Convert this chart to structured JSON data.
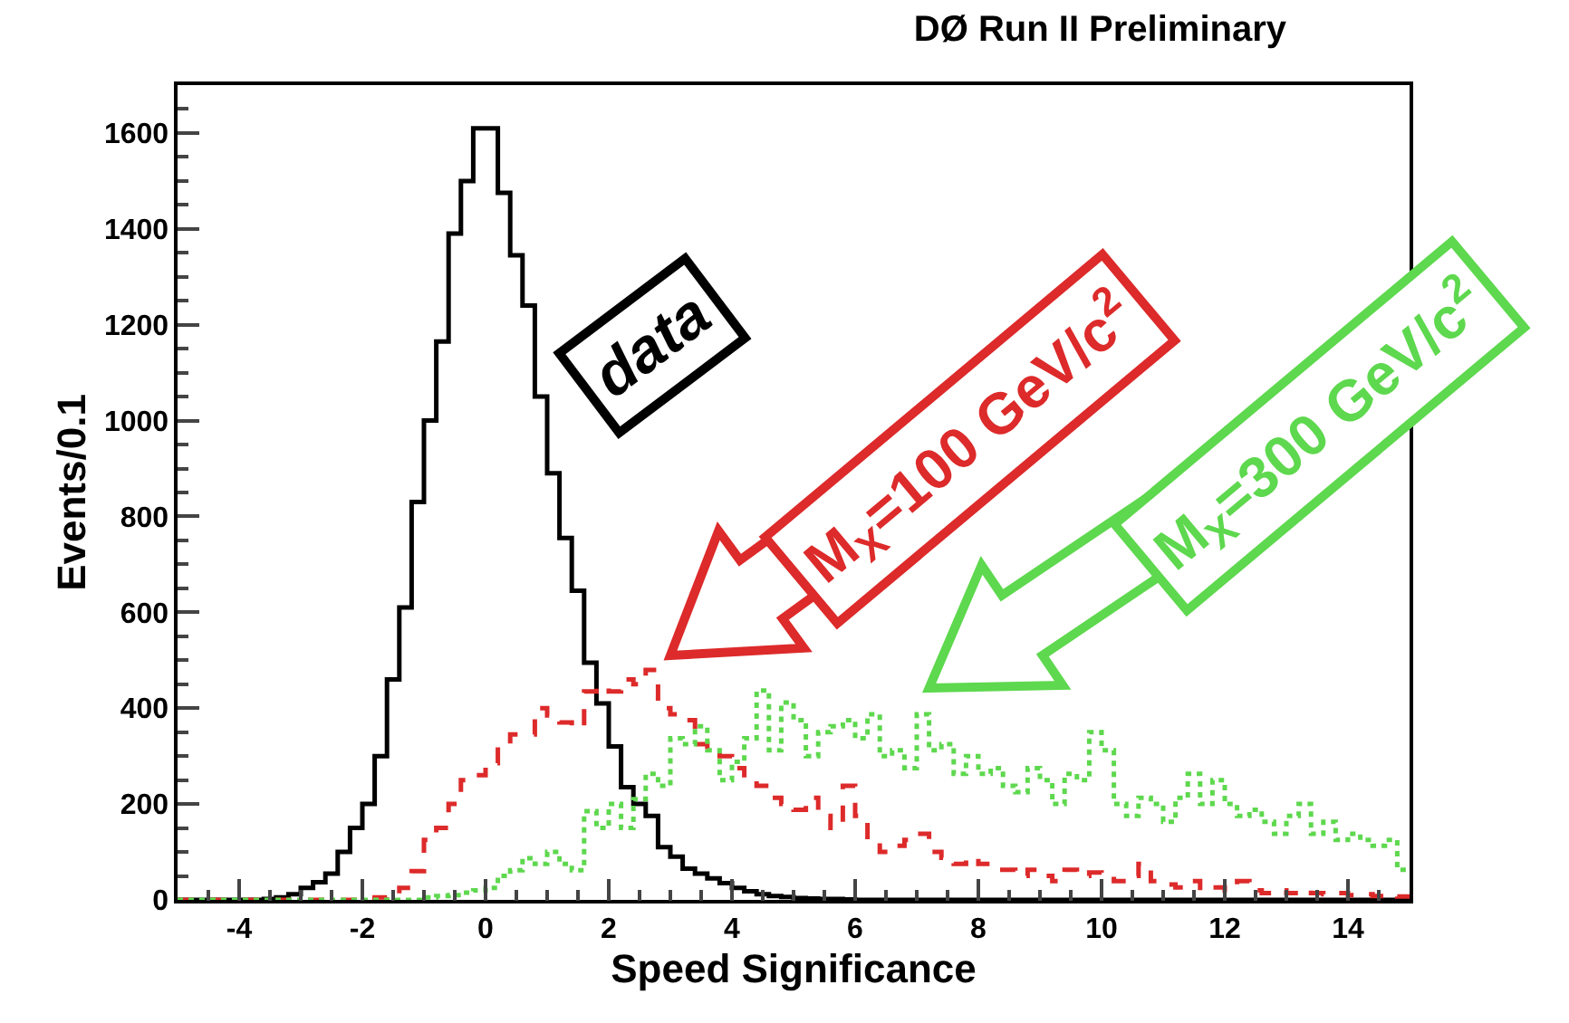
{
  "chart_data": {
    "type": "histogram",
    "title": "DØ Run II Preliminary",
    "xlabel": "Speed Significance",
    "ylabel": "Events/0.1",
    "bins": [
      -5,
      -4.8,
      -4.6,
      -4.4,
      -4.2,
      -4,
      -3.8,
      -3.6,
      -3.4,
      -3.2,
      -3,
      -2.8,
      -2.6,
      -2.4,
      -2.2,
      -2,
      -1.8,
      -1.6,
      -1.4,
      -1.2,
      -1,
      -0.8,
      -0.6,
      -0.4,
      -0.2,
      0,
      0.2,
      0.4,
      0.6,
      0.8,
      1,
      1.2,
      1.4,
      1.6,
      1.8,
      2,
      2.2,
      2.4,
      2.6,
      2.8,
      3,
      3.2,
      3.4,
      3.6,
      3.8,
      4,
      4.2,
      4.4,
      4.6,
      4.8,
      5,
      5.2,
      5.4,
      5.6,
      5.8,
      6,
      6.2,
      6.4,
      6.6,
      6.8,
      7,
      7.2,
      7.4,
      7.6,
      7.8,
      8,
      8.2,
      8.4,
      8.6,
      8.8,
      9,
      9.2,
      9.4,
      9.6,
      9.8,
      10,
      10.2,
      10.4,
      10.6,
      10.8,
      11,
      11.2,
      11.4,
      11.6,
      11.8,
      12,
      12.2,
      12.4,
      12.6,
      12.8,
      13,
      13.2,
      13.4,
      13.6,
      13.8,
      14,
      14.2,
      14.4,
      14.6,
      14.8,
      15
    ],
    "series": [
      {
        "name": "data",
        "color": "#000000",
        "line_style": "solid",
        "values": [
          0,
          0,
          0,
          0,
          0,
          0,
          0,
          2,
          5,
          12,
          25,
          37,
          55,
          100,
          150,
          200,
          300,
          460,
          610,
          830,
          1000,
          1165,
          1390,
          1500,
          1610,
          1610,
          1475,
          1345,
          1240,
          1050,
          890,
          755,
          645,
          495,
          410,
          320,
          235,
          200,
          175,
          110,
          90,
          65,
          55,
          45,
          35,
          25,
          18,
          12,
          8,
          6,
          4,
          3,
          2,
          2,
          1,
          0,
          0,
          0,
          0,
          0,
          0,
          0,
          0,
          0,
          0,
          0,
          0,
          0,
          0,
          0,
          0,
          0,
          0,
          0,
          0,
          0,
          0,
          0,
          0,
          0,
          0,
          0,
          0,
          0,
          0,
          0,
          0,
          0,
          0,
          0,
          0,
          0,
          0,
          0,
          0,
          0,
          0,
          0,
          0,
          0
        ]
      },
      {
        "name": "M$_{X}$=100 GeV/c$^{2}$",
        "color": "#dd2a2a",
        "line_style": "dashed",
        "values": [
          0,
          0,
          0,
          0,
          0,
          0,
          0,
          0,
          0,
          0,
          0,
          0,
          0,
          0,
          0,
          2,
          5,
          12,
          25,
          60,
          125,
          150,
          200,
          250,
          260,
          285,
          320,
          345,
          345,
          400,
          385,
          370,
          360,
          435,
          445,
          435,
          460,
          450,
          480,
          400,
          387,
          375,
          325,
          312,
          300,
          275,
          250,
          238,
          213,
          200,
          188,
          213,
          175,
          150,
          238,
          175,
          125,
          100,
          113,
          125,
          138,
          100,
          88,
          75,
          88,
          75,
          63,
          63,
          50,
          63,
          50,
          39,
          63,
          50,
          57,
          50,
          39,
          50,
          75,
          39,
          32,
          26,
          39,
          20,
          26,
          20,
          39,
          20,
          14,
          20,
          14,
          20,
          14,
          12,
          14,
          10,
          12,
          8,
          10,
          7
        ]
      },
      {
        "name": "M$_{X}$=300 GeV/c$^{2}$",
        "color": "#5ed84e",
        "line_style": "dotted",
        "values": [
          0,
          0,
          0,
          0,
          0,
          0,
          0,
          0,
          0,
          0,
          0,
          0,
          0,
          0,
          0,
          0,
          0,
          0,
          0,
          0,
          5,
          8,
          10,
          15,
          20,
          25,
          50,
          62,
          87,
          75,
          100,
          75,
          62,
          185,
          150,
          200,
          150,
          210,
          263,
          238,
          337,
          325,
          362,
          312,
          250,
          288,
          337,
          437,
          312,
          412,
          375,
          300,
          350,
          362,
          375,
          337,
          387,
          300,
          312,
          275,
          387,
          312,
          325,
          263,
          300,
          263,
          275,
          238,
          225,
          275,
          250,
          200,
          263,
          250,
          350,
          312,
          200,
          175,
          213,
          200,
          163,
          213,
          263,
          200,
          250,
          200,
          175,
          188,
          163,
          138,
          175,
          200,
          138,
          163,
          125,
          138,
          125,
          113,
          125,
          63
        ]
      }
    ],
    "xlim": [
      -5,
      15
    ],
    "xticks": [
      -4,
      -2,
      0,
      2,
      4,
      6,
      8,
      10,
      12,
      14
    ],
    "ylim": [
      0,
      1700
    ],
    "yticks": [
      0,
      200,
      400,
      600,
      800,
      1000,
      1200,
      1400,
      1600
    ],
    "grid": false,
    "legend": false,
    "marker": "none"
  }
}
